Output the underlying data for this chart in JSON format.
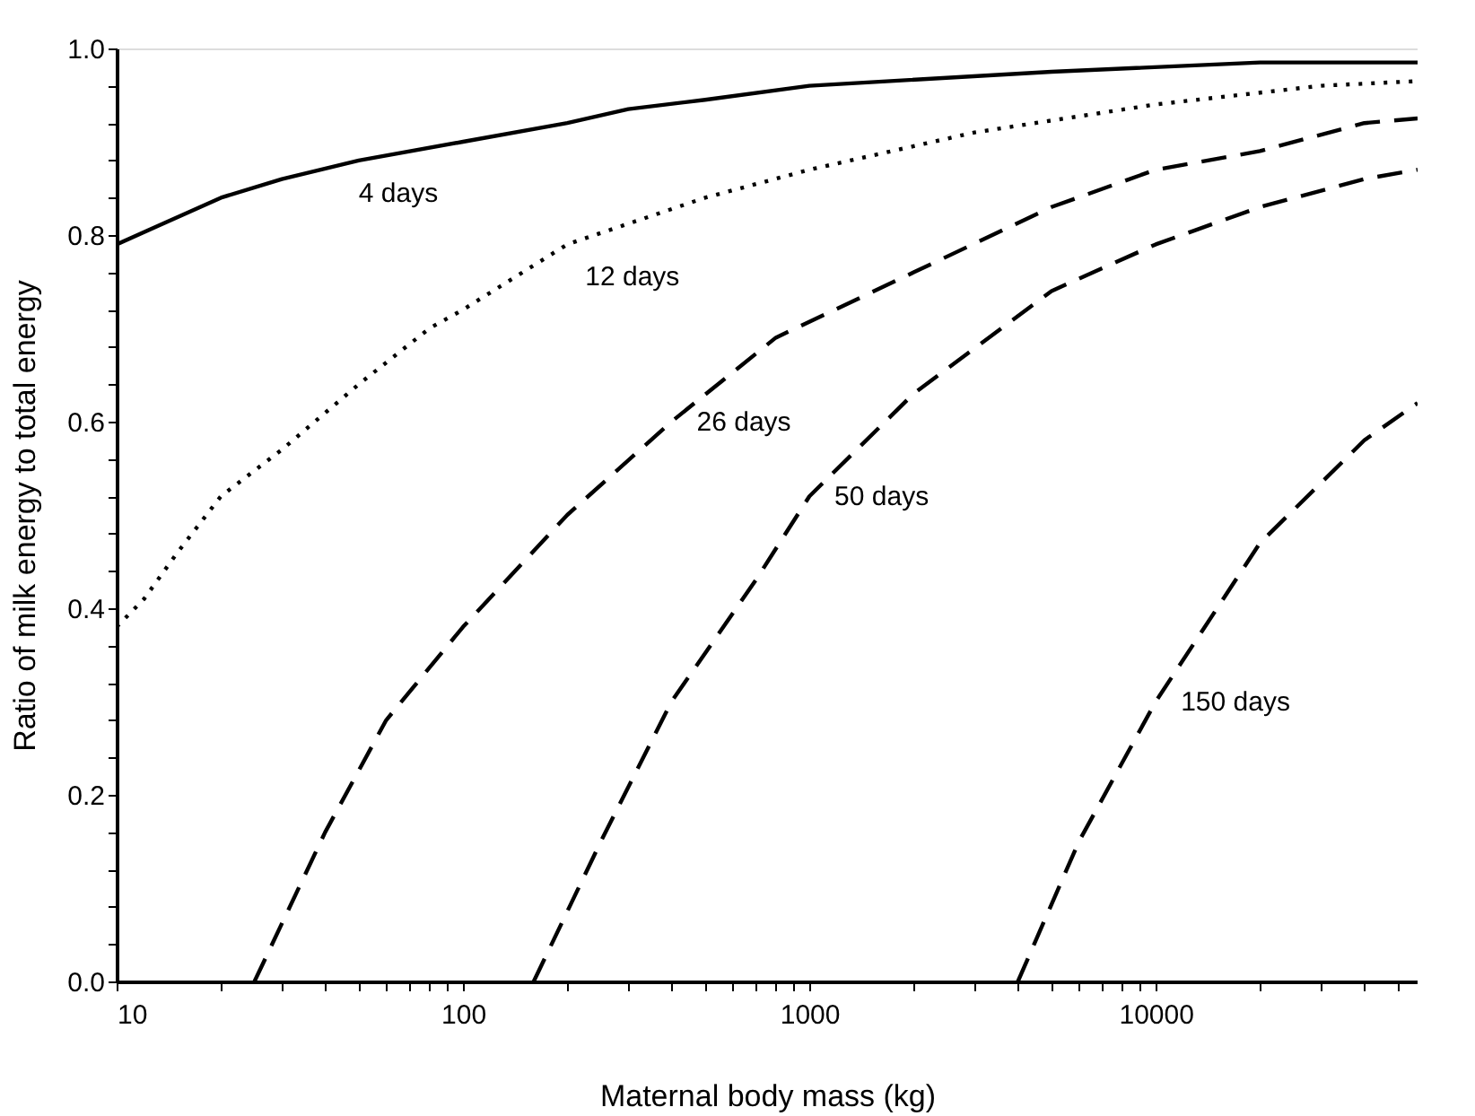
{
  "chart_data": {
    "type": "line",
    "xlabel": "Maternal body mass (kg)",
    "ylabel": "Ratio of milk energy to total energy",
    "log": "x",
    "grid": false,
    "marker": "none",
    "xlim": [
      10,
      57000
    ],
    "ylim": [
      0,
      1.0
    ],
    "xticks": [
      10,
      {
        "value": 20,
        "label": null
      },
      {
        "value": 30,
        "label": null
      },
      {
        "value": 40,
        "label": null
      },
      {
        "value": 50,
        "label": null
      },
      {
        "value": 60,
        "label": null
      },
      {
        "value": 70,
        "label": null
      },
      {
        "value": 80,
        "label": null
      },
      {
        "value": 90,
        "label": null
      },
      100,
      {
        "value": 200,
        "label": null
      },
      {
        "value": 300,
        "label": null
      },
      {
        "value": 400,
        "label": null
      },
      {
        "value": 500,
        "label": null
      },
      {
        "value": 600,
        "label": null
      },
      {
        "value": 700,
        "label": null
      },
      {
        "value": 800,
        "label": null
      },
      {
        "value": 900,
        "label": null
      },
      1000,
      {
        "value": 2000,
        "label": null
      },
      {
        "value": 3000,
        "label": null
      },
      {
        "value": 4000,
        "label": null
      },
      {
        "value": 5000,
        "label": null
      },
      {
        "value": 6000,
        "label": null
      },
      {
        "value": 7000,
        "label": null
      },
      {
        "value": 8000,
        "label": null
      },
      {
        "value": 9000,
        "label": null
      },
      10000,
      {
        "value": 20000,
        "label": null
      },
      {
        "value": 30000,
        "label": null
      },
      {
        "value": 40000,
        "label": null
      },
      {
        "value": 50000,
        "label": null
      }
    ],
    "yticks": [
      {
        "value": 0,
        "label": "0.0"
      },
      {
        "value": 0.04,
        "label": null
      },
      {
        "value": 0.08,
        "label": null
      },
      {
        "value": 0.12,
        "label": null
      },
      {
        "value": 0.16,
        "label": null
      },
      0.2,
      {
        "value": 0.24,
        "label": null
      },
      {
        "value": 0.28,
        "label": null
      },
      {
        "value": 0.32,
        "label": null
      },
      {
        "value": 0.36,
        "label": null
      },
      0.4,
      {
        "value": 0.44,
        "label": null
      },
      {
        "value": 0.48,
        "label": null
      },
      {
        "value": 0.52,
        "label": null
      },
      {
        "value": 0.56,
        "label": null
      },
      0.6,
      {
        "value": 0.64,
        "label": null
      },
      {
        "value": 0.68,
        "label": null
      },
      {
        "value": 0.72,
        "label": null
      },
      {
        "value": 0.76,
        "label": null
      },
      0.8,
      {
        "value": 0.84,
        "label": null
      },
      {
        "value": 0.88,
        "label": null
      },
      {
        "value": 0.92,
        "label": null
      },
      {
        "value": 0.96,
        "label": null
      },
      {
        "value": 1.0,
        "label": "1.0"
      }
    ],
    "series": [
      {
        "name": "4 days",
        "color": "#000000",
        "line_style": "solid",
        "x": [
          10,
          20,
          30,
          50,
          100,
          200,
          300,
          500,
          1000,
          5000,
          20000,
          57000
        ],
        "values": [
          0.79,
          0.84,
          0.86,
          0.88,
          0.9,
          0.92,
          0.935,
          0.945,
          0.96,
          0.975,
          0.985,
          0.985
        ]
      },
      {
        "name": "12 days",
        "color": "#000000",
        "line_style": "dotted",
        "x": [
          10,
          12,
          15,
          20,
          30,
          50,
          80,
          100,
          200,
          500,
          1000,
          3000,
          10000,
          30000,
          57000
        ],
        "values": [
          0.38,
          0.41,
          0.46,
          0.52,
          0.57,
          0.64,
          0.7,
          0.72,
          0.79,
          0.84,
          0.87,
          0.91,
          0.94,
          0.96,
          0.965
        ]
      },
      {
        "name": "26 days",
        "color": "#000000",
        "line_style": "dashed",
        "x": [
          25,
          40,
          60,
          100,
          200,
          400,
          800,
          2000,
          5000,
          10000,
          20000,
          40000,
          57000
        ],
        "values": [
          0,
          0.16,
          0.28,
          0.38,
          0.5,
          0.6,
          0.69,
          0.76,
          0.83,
          0.87,
          0.89,
          0.92,
          0.925
        ]
      },
      {
        "name": "50 days",
        "color": "#000000",
        "line_style": "dashed",
        "x": [
          160,
          250,
          400,
          700,
          1000,
          2000,
          5000,
          10000,
          20000,
          40000,
          57000
        ],
        "values": [
          0,
          0.15,
          0.3,
          0.43,
          0.52,
          0.63,
          0.74,
          0.79,
          0.83,
          0.86,
          0.87
        ]
      },
      {
        "name": "150 days",
        "color": "#000000",
        "line_style": "dashed",
        "x": [
          4000,
          6000,
          10000,
          20000,
          40000,
          57000
        ],
        "values": [
          0,
          0.15,
          0.3,
          0.47,
          0.58,
          0.62
        ]
      }
    ]
  }
}
